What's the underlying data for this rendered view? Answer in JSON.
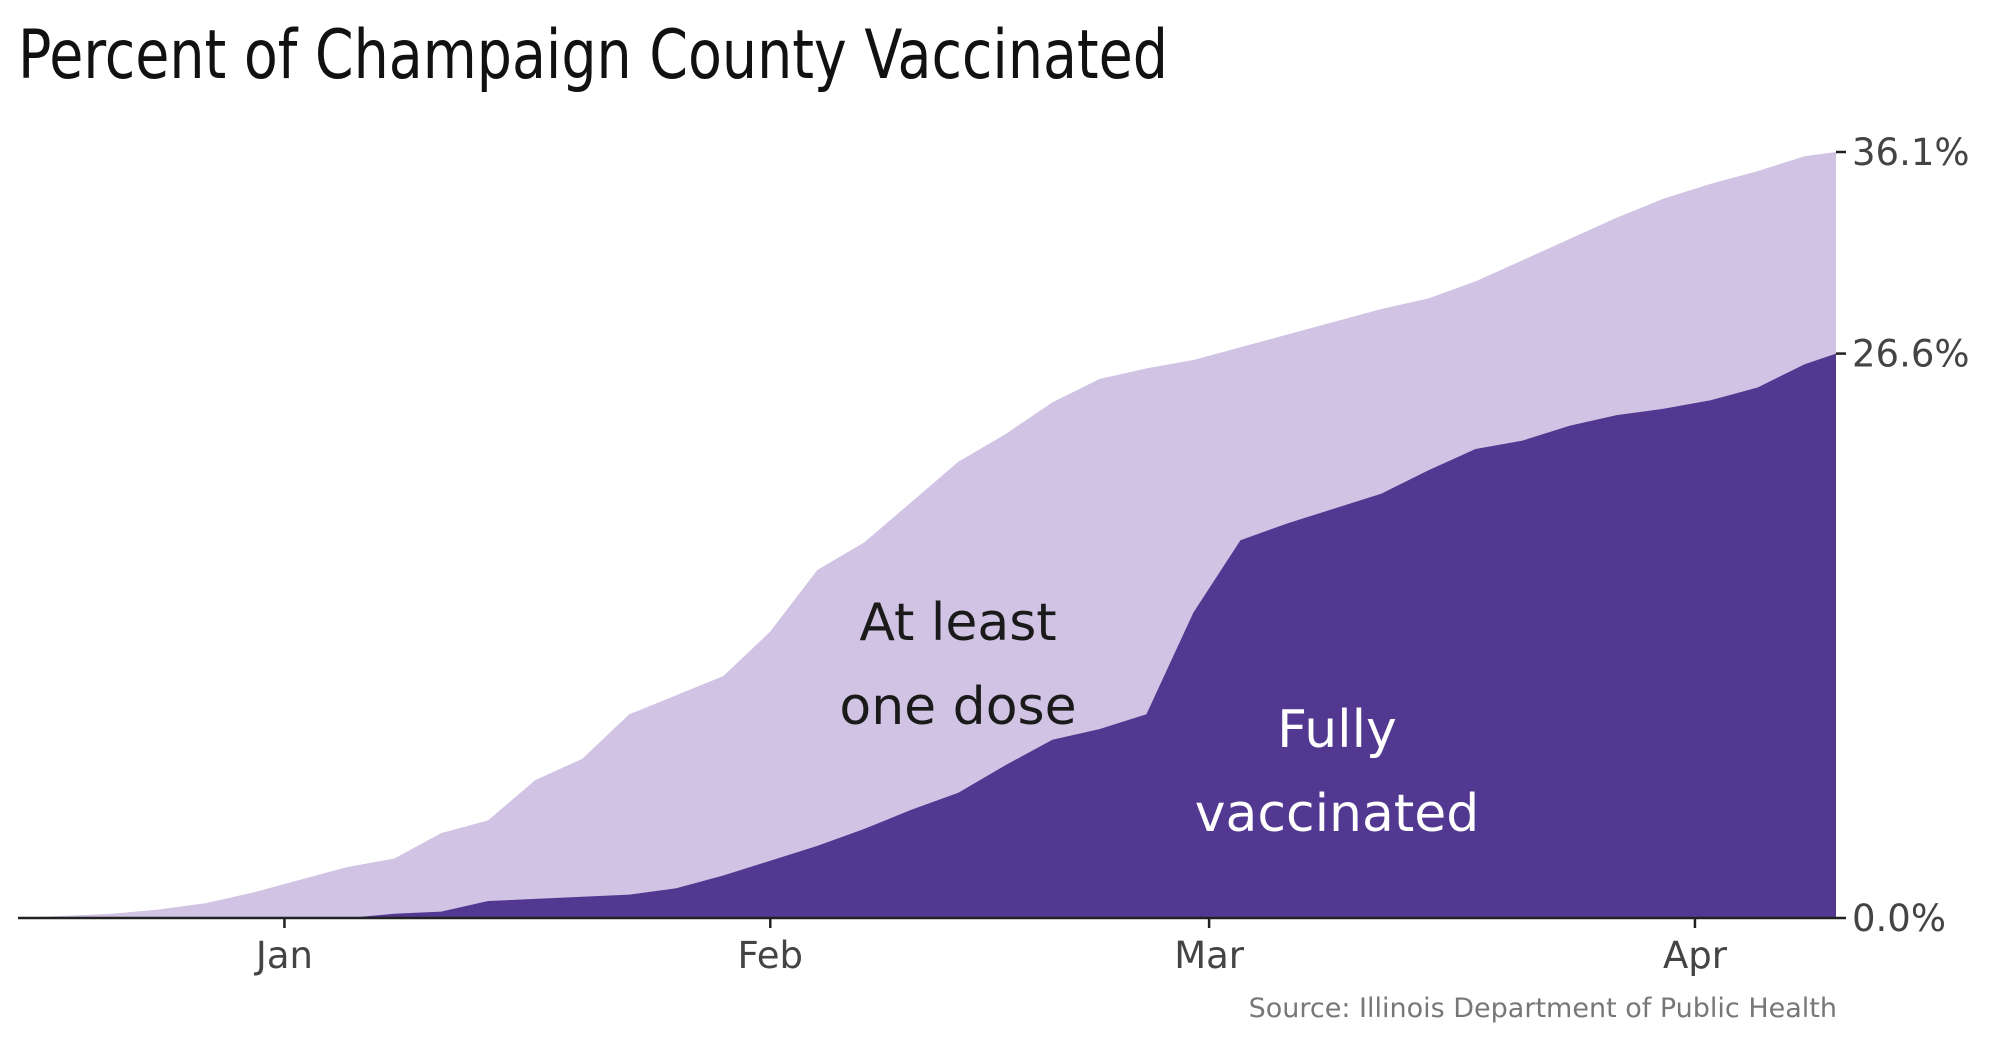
{
  "chart_data": {
    "type": "area",
    "title": "Percent of Champaign County Vaccinated",
    "source": "Source: Illinois Department of Public Health",
    "x_ticks": [
      "Jan",
      "Feb",
      "Mar",
      "Apr"
    ],
    "x_tick_dates": [
      "2021-01-01",
      "2021-02-01",
      "2021-03-01",
      "2021-04-01"
    ],
    "y_ticks": [
      "0.0%",
      "26.6%",
      "36.1%"
    ],
    "y_tick_values": [
      0.0,
      26.6,
      36.1
    ],
    "ylim": [
      0,
      36.1
    ],
    "xlim": [
      "2020-12-15",
      "2021-04-10"
    ],
    "y_axis_position": "right",
    "grid": false,
    "legend": "none",
    "annotations": [
      {
        "text_lines": [
          "At least",
          "one dose"
        ],
        "series": "at_least_one_dose"
      },
      {
        "text_lines": [
          "Fully",
          "vaccinated"
        ],
        "series": "fully_vaccinated"
      }
    ],
    "colors": {
      "at_least_one_dose": "#d0c3e3",
      "fully_vaccinated": "#523891",
      "axis": "#222222"
    },
    "series": [
      {
        "key": "at_least_one_dose",
        "x": [
          "2020-12-15",
          "2020-12-18",
          "2020-12-21",
          "2020-12-24",
          "2020-12-27",
          "2020-12-30",
          "2021-01-02",
          "2021-01-05",
          "2021-01-08",
          "2021-01-11",
          "2021-01-14",
          "2021-01-17",
          "2021-01-20",
          "2021-01-23",
          "2021-01-26",
          "2021-01-29",
          "2021-02-01",
          "2021-02-04",
          "2021-02-07",
          "2021-02-10",
          "2021-02-13",
          "2021-02-16",
          "2021-02-19",
          "2021-02-22",
          "2021-02-25",
          "2021-02-28",
          "2021-03-03",
          "2021-03-06",
          "2021-03-09",
          "2021-03-12",
          "2021-03-15",
          "2021-03-18",
          "2021-03-21",
          "2021-03-24",
          "2021-03-27",
          "2021-03-30",
          "2021-04-02",
          "2021-04-05",
          "2021-04-08",
          "2021-04-10"
        ],
        "values": [
          0.0,
          0.1,
          0.2,
          0.4,
          0.7,
          1.2,
          1.8,
          2.4,
          2.8,
          4.0,
          4.6,
          6.5,
          7.5,
          9.6,
          10.5,
          11.4,
          13.5,
          16.4,
          17.7,
          19.6,
          21.5,
          22.8,
          24.3,
          25.4,
          25.9,
          26.3,
          26.9,
          27.5,
          28.1,
          28.7,
          29.2,
          30.0,
          31.0,
          32.0,
          33.0,
          33.9,
          34.6,
          35.2,
          35.9,
          36.1
        ]
      },
      {
        "key": "fully_vaccinated",
        "x": [
          "2020-12-15",
          "2020-12-18",
          "2020-12-21",
          "2020-12-24",
          "2020-12-27",
          "2020-12-30",
          "2021-01-02",
          "2021-01-05",
          "2021-01-08",
          "2021-01-11",
          "2021-01-14",
          "2021-01-17",
          "2021-01-20",
          "2021-01-23",
          "2021-01-26",
          "2021-01-29",
          "2021-02-01",
          "2021-02-04",
          "2021-02-07",
          "2021-02-10",
          "2021-02-13",
          "2021-02-16",
          "2021-02-19",
          "2021-02-22",
          "2021-02-25",
          "2021-02-28",
          "2021-03-03",
          "2021-03-06",
          "2021-03-09",
          "2021-03-12",
          "2021-03-15",
          "2021-03-18",
          "2021-03-21",
          "2021-03-24",
          "2021-03-27",
          "2021-03-30",
          "2021-04-02",
          "2021-04-05",
          "2021-04-08",
          "2021-04-10"
        ],
        "values": [
          0.0,
          0.0,
          0.0,
          0.0,
          0.0,
          0.0,
          0.0,
          0.0,
          0.2,
          0.3,
          0.8,
          0.9,
          1.0,
          1.1,
          1.4,
          2.0,
          2.7,
          3.4,
          4.2,
          5.1,
          5.9,
          7.2,
          8.4,
          8.9,
          9.6,
          14.4,
          17.8,
          18.6,
          19.3,
          20.0,
          21.1,
          22.1,
          22.5,
          23.2,
          23.7,
          24.0,
          24.4,
          25.0,
          26.1,
          26.6
        ]
      }
    ]
  }
}
